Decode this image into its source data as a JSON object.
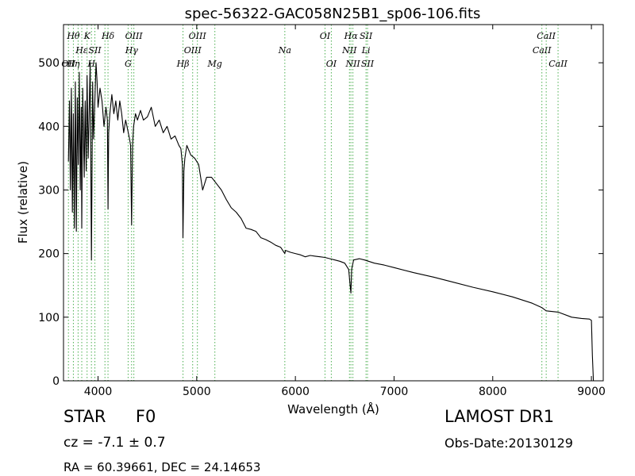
{
  "chart_data": {
    "type": "line",
    "title": "spec-56322-GAC058N25B1_sp06-106.fits",
    "xlabel": "Wavelength (Å)",
    "ylabel": "Flux (relative)",
    "xlim": [
      3650,
      9120
    ],
    "ylim": [
      0,
      560
    ],
    "xticks": [
      4000,
      5000,
      6000,
      7000,
      8000,
      9000
    ],
    "yticks": [
      0,
      100,
      200,
      300,
      400,
      500
    ],
    "grid": false,
    "line_color": "#000000",
    "marker_color": "#4caf50",
    "series": [
      {
        "x": [
          3700,
          3710,
          3720,
          3730,
          3740,
          3750,
          3760,
          3770,
          3780,
          3790,
          3800,
          3810,
          3820,
          3830,
          3835,
          3845,
          3860,
          3870,
          3880,
          3889,
          3900,
          3920,
          3933,
          3945,
          3955,
          3968,
          3980,
          3990,
          4000,
          4020,
          4040,
          4060,
          4080,
          4095,
          4101,
          4108,
          4120,
          4140,
          4160,
          4180,
          4200,
          4220,
          4240,
          4260,
          4280,
          4300,
          4320,
          4330,
          4340,
          4350,
          4360,
          4380,
          4400,
          4430,
          4460,
          4500,
          4540,
          4580,
          4620,
          4660,
          4700,
          4740,
          4780,
          4820,
          4840,
          4855,
          4861,
          4870,
          4880,
          4900,
          4940,
          4980,
          5020,
          5060,
          5100,
          5150,
          5200,
          5250,
          5300,
          5350,
          5400,
          5450,
          5500,
          5550,
          5600,
          5650,
          5700,
          5750,
          5800,
          5850,
          5893,
          5900,
          5950,
          6000,
          6050,
          6100,
          6150,
          6200,
          6250,
          6300,
          6350,
          6400,
          6450,
          6500,
          6540,
          6555,
          6563,
          6570,
          6590,
          6650,
          6700,
          6800,
          6900,
          7000,
          7200,
          7400,
          7600,
          7800,
          8000,
          8200,
          8400,
          8498,
          8542,
          8662,
          8800,
          8900,
          8980,
          9000,
          9010,
          9020
        ],
        "y": [
          345,
          440,
          300,
          460,
          265,
          420,
          240,
          470,
          235,
          445,
          340,
          485,
          300,
          430,
          240,
          460,
          320,
          440,
          330,
          480,
          350,
          500,
          190,
          470,
          380,
          440,
          500,
          470,
          430,
          460,
          440,
          400,
          430,
          410,
          270,
          390,
          420,
          450,
          420,
          440,
          410,
          440,
          420,
          390,
          410,
          395,
          380,
          370,
          245,
          370,
          400,
          420,
          410,
          425,
          410,
          415,
          430,
          400,
          410,
          390,
          400,
          380,
          385,
          370,
          365,
          340,
          225,
          330,
          350,
          370,
          355,
          350,
          340,
          300,
          320,
          320,
          310,
          300,
          285,
          272,
          265,
          255,
          240,
          238,
          235,
          225,
          222,
          218,
          213,
          210,
          200,
          205,
          202,
          200,
          198,
          195,
          197,
          196,
          195,
          194,
          192,
          190,
          188,
          185,
          175,
          150,
          138,
          175,
          190,
          192,
          190,
          185,
          182,
          178,
          170,
          163,
          155,
          147,
          140,
          132,
          122,
          115,
          110,
          108,
          100,
          98,
          97,
          95,
          40,
          0
        ]
      }
    ],
    "lines": [
      {
        "x": 3700,
        "labels": [
          {
            "text": "OII",
            "row": 3
          }
        ]
      },
      {
        "x": 3750,
        "labels": [
          {
            "text": "Hθ",
            "row": 1
          },
          {
            "text": "Hη",
            "row": 3
          }
        ]
      },
      {
        "x": 3798,
        "labels": []
      },
      {
        "x": 3835,
        "labels": [
          {
            "text": "Hε",
            "row": 2
          }
        ]
      },
      {
        "x": 3889,
        "labels": [
          {
            "text": "K",
            "row": 1
          }
        ]
      },
      {
        "x": 3933,
        "labels": [
          {
            "text": "H",
            "row": 3
          }
        ]
      },
      {
        "x": 3968,
        "labels": [
          {
            "text": "SII",
            "row": 2
          }
        ]
      },
      {
        "x": 4070,
        "labels": []
      },
      {
        "x": 4101,
        "labels": [
          {
            "text": "Hδ",
            "row": 1
          }
        ]
      },
      {
        "x": 4305,
        "labels": [
          {
            "text": "G",
            "row": 3
          }
        ]
      },
      {
        "x": 4340,
        "labels": [
          {
            "text": "Hγ",
            "row": 2
          }
        ]
      },
      {
        "x": 4363,
        "labels": [
          {
            "text": "OIII",
            "row": 1
          }
        ]
      },
      {
        "x": 4861,
        "labels": [
          {
            "text": "Hβ",
            "row": 3
          }
        ]
      },
      {
        "x": 4959,
        "labels": [
          {
            "text": "OIII",
            "row": 2
          }
        ]
      },
      {
        "x": 5007,
        "labels": [
          {
            "text": "OIII",
            "row": 1
          }
        ]
      },
      {
        "x": 5184,
        "labels": [
          {
            "text": "Mg",
            "row": 3
          }
        ]
      },
      {
        "x": 5893,
        "labels": [
          {
            "text": "Na",
            "row": 2
          }
        ]
      },
      {
        "x": 6300,
        "labels": [
          {
            "text": "OI",
            "row": 1
          }
        ]
      },
      {
        "x": 6364,
        "labels": [
          {
            "text": "OI",
            "row": 3
          }
        ]
      },
      {
        "x": 6548,
        "labels": [
          {
            "text": "NII",
            "row": 2
          }
        ]
      },
      {
        "x": 6563,
        "labels": [
          {
            "text": "Hα",
            "row": 1
          }
        ]
      },
      {
        "x": 6583,
        "labels": [
          {
            "text": "NII",
            "row": 3
          }
        ]
      },
      {
        "x": 6716,
        "labels": [
          {
            "text": "SII",
            "row": 1
          },
          {
            "text": "Li",
            "row": 2
          }
        ]
      },
      {
        "x": 6731,
        "labels": [
          {
            "text": "SII",
            "row": 3
          }
        ]
      },
      {
        "x": 8498,
        "labels": [
          {
            "text": "CaII",
            "row": 2
          }
        ]
      },
      {
        "x": 8542,
        "labels": [
          {
            "text": "CaII",
            "row": 1
          }
        ]
      },
      {
        "x": 8662,
        "labels": [
          {
            "text": "CaII",
            "row": 3
          }
        ]
      }
    ]
  },
  "info": {
    "object_class": "STAR",
    "subclass": "F0",
    "survey": "LAMOST DR1",
    "cz": "cz = -7.1  ± 0.7",
    "obs_date": "Obs-Date:20130129",
    "radec": "RA = 60.39661, DEC = 24.14653"
  }
}
